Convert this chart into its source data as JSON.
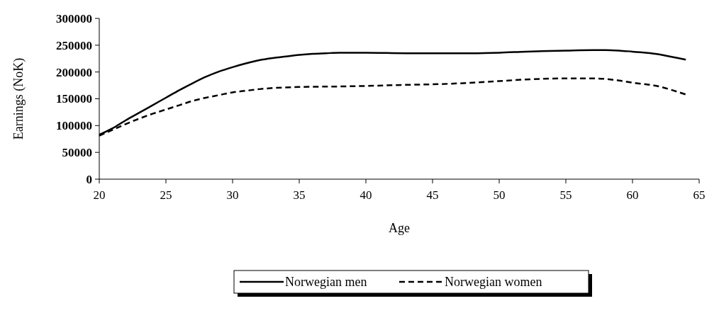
{
  "chart_data": {
    "type": "line",
    "xlabel": "Age",
    "ylabel": "Earnings (NoK)",
    "xlim": [
      20,
      65
    ],
    "xticks": [
      20,
      25,
      30,
      35,
      40,
      45,
      50,
      55,
      60,
      65
    ],
    "ylim": [
      0,
      300000
    ],
    "yticks": [
      0,
      50000,
      100000,
      150000,
      200000,
      250000,
      300000
    ],
    "grid": false,
    "legend": "bottom",
    "series": [
      {
        "name": "Norwegian men",
        "color": "#000000",
        "line_style": "solid",
        "x": [
          20,
          21,
          22,
          23,
          24,
          25,
          26,
          27,
          28,
          29,
          30,
          31,
          32,
          33,
          34,
          35,
          36,
          37,
          38,
          40,
          43,
          45,
          48,
          50,
          52,
          55,
          57,
          58,
          59,
          60,
          61,
          62,
          63,
          64
        ],
        "values": [
          83000,
          95000,
          110000,
          124000,
          138000,
          152000,
          166000,
          179000,
          191000,
          201000,
          209000,
          216000,
          222000,
          226000,
          229000,
          232000,
          234000,
          235000,
          236000,
          236000,
          235000,
          235000,
          235000,
          236000,
          238000,
          240000,
          241000,
          241000,
          240000,
          238000,
          236000,
          233000,
          228000,
          223000
        ]
      },
      {
        "name": "Norwegian women",
        "color": "#000000",
        "line_style": "dashed",
        "x": [
          20,
          21,
          22,
          23,
          24,
          25,
          26,
          27,
          28,
          29,
          30,
          31,
          32,
          33,
          35,
          38,
          40,
          43,
          45,
          48,
          50,
          52,
          55,
          57,
          58,
          59,
          60,
          61,
          62,
          63,
          64
        ],
        "values": [
          81000,
          92000,
          103000,
          113000,
          122000,
          130000,
          138000,
          146000,
          152000,
          157000,
          162000,
          165000,
          168000,
          170000,
          172000,
          173000,
          174000,
          176000,
          177000,
          180000,
          183000,
          186000,
          188000,
          188000,
          187000,
          184000,
          180000,
          177000,
          173000,
          166000,
          158000
        ]
      }
    ]
  }
}
